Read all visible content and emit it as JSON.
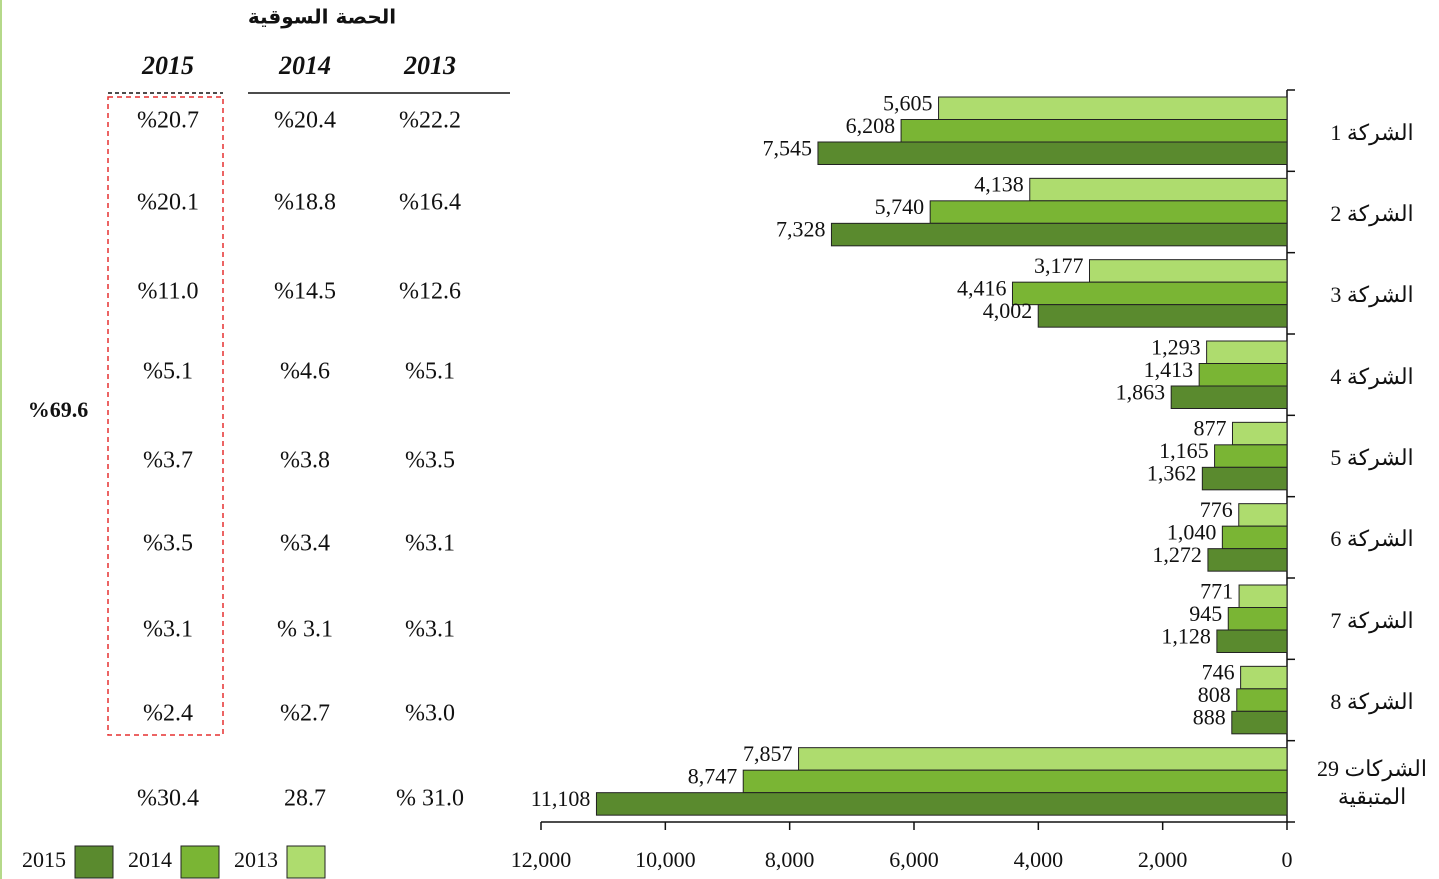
{
  "chart_data": {
    "type": "bar",
    "orientation": "horizontal",
    "x_reversed": true,
    "categories": [
      "الشركة 1",
      "الشركة 2",
      "الشركة 3",
      "الشركة 4",
      "الشركة 5",
      "الشركة 6",
      "الشركة 7",
      "الشركة 8",
      "الشركات 29 المتبقية"
    ],
    "series": [
      {
        "name": "2013",
        "color": "#aedc6e",
        "values": [
          5605,
          4138,
          3177,
          1293,
          877,
          776,
          771,
          746,
          7857
        ],
        "value_labels": [
          "5,605",
          "4,138",
          "3,177",
          "1,293",
          "877",
          "776",
          "771",
          "746",
          "7,857"
        ]
      },
      {
        "name": "2014",
        "color": "#7ab534",
        "values": [
          6208,
          5740,
          4416,
          1413,
          1165,
          1040,
          945,
          808,
          8747
        ],
        "value_labels": [
          "6,208",
          "5,740",
          "4,416",
          "1,413",
          "1,165",
          "1,040",
          "945",
          "808",
          "8,747"
        ]
      },
      {
        "name": "2015",
        "color": "#5a8a2e",
        "values": [
          7545,
          7328,
          4002,
          1863,
          1362,
          1272,
          1128,
          888,
          11108
        ],
        "value_labels": [
          "7,545",
          "7,328",
          "4,002",
          "1,863",
          "1,362",
          "1,272",
          "1,128",
          "888",
          "11,108"
        ]
      }
    ],
    "xlim": [
      0,
      12000
    ],
    "xticks": [
      0,
      {
        "value": 2000,
        "label": "2,000"
      },
      {
        "value": 4000,
        "label": "4,000"
      },
      {
        "value": 6000,
        "label": "6,000"
      },
      {
        "value": 8000,
        "label": "8,000"
      },
      {
        "value": 10000,
        "label": "10,000"
      },
      {
        "value": 12000,
        "label": "12,000"
      }
    ],
    "grid": false
  },
  "table": {
    "title": "الحصة السوقية",
    "columns": [
      "2015",
      "2014",
      "2013"
    ],
    "rows": [
      [
        "%20.7",
        "%20.4",
        "%22.2"
      ],
      [
        "%20.1",
        "%18.8",
        "%16.4"
      ],
      [
        "%11.0",
        "%14.5",
        "%12.6"
      ],
      [
        "%5.1",
        "%4.6",
        "%5.1"
      ],
      [
        "%3.7",
        "%3.8",
        "%3.5"
      ],
      [
        "%3.5",
        "%3.4",
        "%3.1"
      ],
      [
        "%3.1",
        "% 3.1",
        "%3.1"
      ],
      [
        "%2.4",
        "%2.7",
        "%3.0"
      ],
      [
        "%30.4",
        "28.7",
        "% 31.0"
      ]
    ],
    "total": "%69.6"
  }
}
